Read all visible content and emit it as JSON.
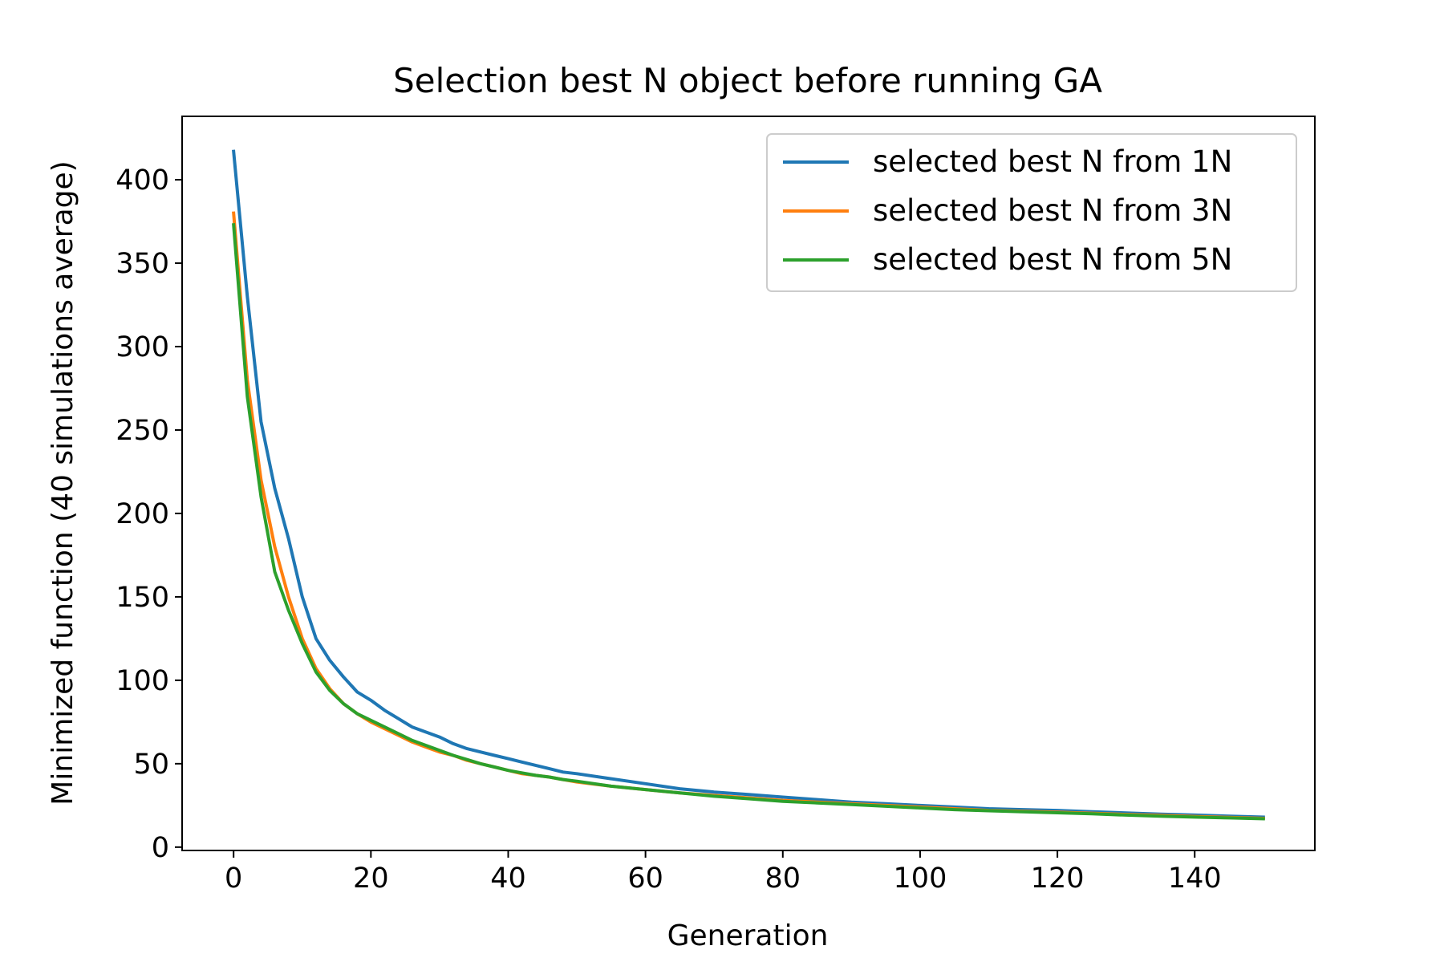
{
  "chart_data": {
    "type": "line",
    "title": "Selection best N object before running GA",
    "xlabel": "Generation",
    "ylabel": "Minimized function (40 simulations average)",
    "xlim": [
      -7.5,
      157.5
    ],
    "ylim": [
      -2,
      438
    ],
    "x_ticks": [
      0,
      20,
      40,
      60,
      80,
      100,
      120,
      140
    ],
    "y_ticks": [
      0,
      50,
      100,
      150,
      200,
      250,
      300,
      350,
      400
    ],
    "grid": false,
    "legend_position": "top-right",
    "x": [
      0,
      2,
      4,
      6,
      8,
      10,
      12,
      14,
      16,
      18,
      20,
      22,
      24,
      26,
      28,
      30,
      32,
      34,
      36,
      38,
      40,
      42,
      44,
      46,
      48,
      50,
      55,
      60,
      65,
      70,
      75,
      80,
      85,
      90,
      95,
      100,
      105,
      110,
      115,
      120,
      125,
      130,
      135,
      140,
      145,
      150
    ],
    "series": [
      {
        "name": "selected best N from 1N",
        "color": "#1f77b4",
        "values": [
          417,
          330,
          255,
          215,
          185,
          150,
          125,
          112,
          102,
          93,
          88,
          82,
          77,
          72,
          69,
          66,
          62,
          59,
          57,
          55,
          53,
          51,
          49,
          47,
          45,
          44,
          41,
          38,
          35,
          33,
          31.5,
          30,
          28.5,
          27,
          26,
          25,
          24,
          23,
          22.5,
          22,
          21.2,
          20.5,
          19.8,
          19.2,
          18.6,
          18
        ]
      },
      {
        "name": "selected best N from 3N",
        "color": "#ff7f0e",
        "values": [
          380,
          280,
          220,
          180,
          150,
          125,
          107,
          95,
          86,
          80,
          75,
          71,
          67,
          63,
          60,
          57,
          55,
          52,
          50,
          48,
          46,
          44,
          43,
          42,
          40.5,
          39,
          36.5,
          34.5,
          32.5,
          31,
          29.5,
          28,
          27,
          26,
          25,
          24,
          23,
          22,
          21.5,
          21,
          20.3,
          19.6,
          19,
          18.4,
          17.8,
          17.3
        ]
      },
      {
        "name": "selected best N from 5N",
        "color": "#2ca02c",
        "values": [
          373,
          270,
          210,
          165,
          142,
          122,
          105,
          94,
          86,
          80,
          76,
          72,
          68,
          64,
          61,
          58,
          55,
          52.5,
          50,
          48,
          46,
          44.5,
          43,
          42,
          40.5,
          39.5,
          36.5,
          34.5,
          32.5,
          30.5,
          29,
          27.5,
          26.5,
          25.5,
          24.5,
          23.5,
          22.5,
          21.8,
          21.2,
          20.6,
          20,
          19.2,
          18.6,
          18,
          17.5,
          17
        ]
      }
    ]
  }
}
